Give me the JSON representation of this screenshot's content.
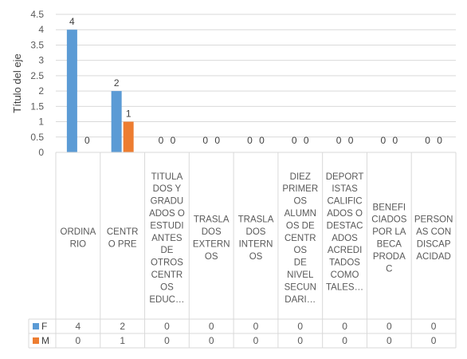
{
  "chart_data": {
    "type": "bar",
    "ylabel": "Título del eje",
    "ylim": [
      0,
      4.5
    ],
    "yticks": [
      "0",
      "0.5",
      "1",
      "1.5",
      "2",
      "2.5",
      "3",
      "3.5",
      "4",
      "4.5"
    ],
    "grid": true,
    "legend_placement": "data-table-left",
    "data_table": true,
    "categories": [
      "ORDINARIO",
      "CENTRO PRE",
      "TITULADOS Y GRADUADOS O ESTUDIANTES DE OTROS CENTROS EDUC…",
      "TRASLADOS EXTERNOS",
      "TRASLADOS INTERNOS",
      "DIEZ PRIMEROS ALUMNOS DE CENTROS DE NIVEL SECUNDARI…",
      "DEPORTISTAS CALIFICADOS O DESTACADOS ACREDITADOS COMO TALES…",
      "BENEFICIADOS POR LA BECA PRODAC",
      "PERSONAS CON DISCAPACIDAD"
    ],
    "category_lines": [
      [
        "ORDINA",
        "RIO"
      ],
      [
        "CENTR",
        "O PRE"
      ],
      [
        "TITULA",
        "DOS Y",
        "GRADU",
        "ADOS O",
        "ESTUDI",
        "ANTES",
        "DE",
        "OTROS",
        "CENTR",
        "OS",
        "EDUC…"
      ],
      [
        "TRASLA",
        "DOS",
        "EXTERN",
        "OS"
      ],
      [
        "TRASLA",
        "DOS",
        "INTERN",
        "OS"
      ],
      [
        "DIEZ",
        "PRIMER",
        "OS",
        "ALUMN",
        "OS DE",
        "CENTR",
        "OS",
        "DE",
        "NIVEL",
        "SECUN",
        "DARI…"
      ],
      [
        "DEPORT",
        "ISTAS",
        "CALIFIC",
        "ADOS O",
        "",
        "DESTAC",
        "ADOS",
        "ACREDI",
        "TADOS",
        "COMO",
        "TALES…"
      ],
      [
        "BENEFI",
        "CIADOS",
        "POR LA",
        "BECA",
        "PRODA",
        "C"
      ],
      [
        "PERSON",
        "AS CON",
        "DISCAP",
        "ACIDAD"
      ]
    ],
    "series": [
      {
        "name": "F",
        "color": "#5B9BD5",
        "values": [
          4,
          2,
          0,
          0,
          0,
          0,
          0,
          0,
          0
        ]
      },
      {
        "name": "M",
        "color": "#ED7D31",
        "values": [
          0,
          1,
          0,
          0,
          0,
          0,
          0,
          0,
          0
        ]
      }
    ]
  }
}
